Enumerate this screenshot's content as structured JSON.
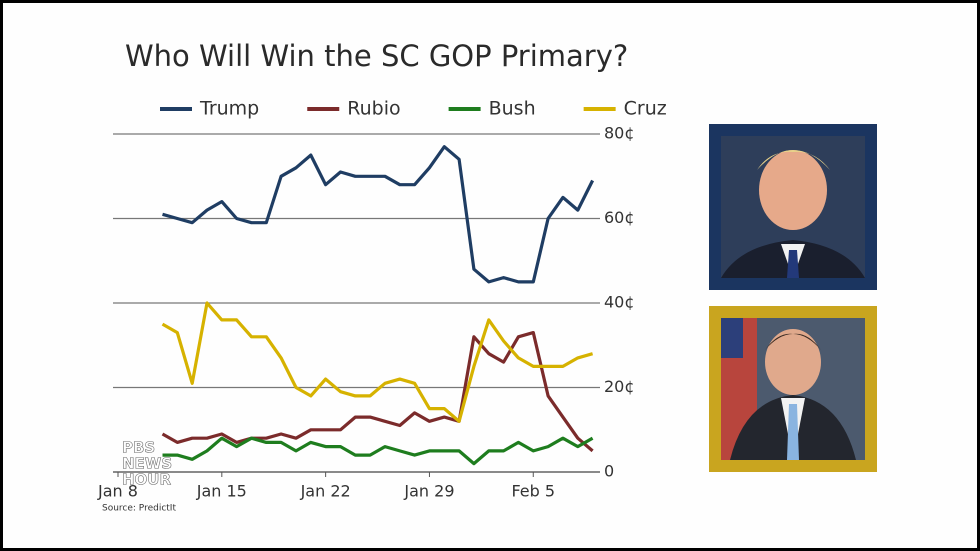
{
  "chart_data": {
    "type": "line",
    "title": "Who Will Win the SC GOP Primary?",
    "source": "Source: PredictIt",
    "logo": [
      "PBS",
      "NEWS",
      "HOUR"
    ],
    "x": [
      11,
      12,
      13,
      14,
      15,
      16,
      17,
      18,
      19,
      20,
      21,
      22,
      23,
      24,
      25,
      26,
      27,
      28,
      29,
      30,
      31,
      32,
      33,
      34,
      35,
      36,
      37,
      38,
      39,
      40
    ],
    "xlim": [
      8,
      40.5
    ],
    "xticks": [
      {
        "value": 8,
        "label": "Jan 8"
      },
      {
        "value": 15,
        "label": "Jan 15"
      },
      {
        "value": 22,
        "label": "Jan 22"
      },
      {
        "value": 29,
        "label": "Jan 29"
      },
      {
        "value": 36,
        "label": "Feb 5"
      }
    ],
    "ylim": [
      0,
      80
    ],
    "yticks": [
      0,
      {
        "value": 20,
        "label": "20¢"
      },
      {
        "value": 40,
        "label": "40¢"
      },
      {
        "value": 60,
        "label": "60¢"
      },
      {
        "value": 80,
        "label": "80¢"
      }
    ],
    "grid": true,
    "legend": "top",
    "series": [
      {
        "name": "Trump",
        "color": "#1f3d63",
        "values": [
          61,
          60,
          59,
          62,
          64,
          60,
          59,
          59,
          70,
          72,
          75,
          68,
          71,
          70,
          70,
          70,
          68,
          68,
          72,
          77,
          74,
          48,
          45,
          46,
          45,
          45,
          60,
          65,
          62,
          69
        ]
      },
      {
        "name": "Rubio",
        "color": "#7b2b2b",
        "values": [
          9,
          7,
          8,
          8,
          9,
          7,
          8,
          8,
          9,
          8,
          10,
          10,
          10,
          13,
          13,
          12,
          11,
          14,
          12,
          13,
          12,
          32,
          28,
          26,
          32,
          33,
          18,
          13,
          8,
          5
        ]
      },
      {
        "name": "Bush",
        "color": "#1e7d1e",
        "values": [
          4,
          4,
          3,
          5,
          8,
          6,
          8,
          7,
          7,
          5,
          7,
          6,
          6,
          4,
          4,
          6,
          5,
          4,
          5,
          5,
          5,
          2,
          5,
          5,
          7,
          5,
          6,
          8,
          6,
          8
        ]
      },
      {
        "name": "Cruz",
        "color": "#d6b200",
        "values": [
          35,
          33,
          21,
          40,
          36,
          36,
          32,
          32,
          27,
          20,
          18,
          22,
          19,
          18,
          18,
          21,
          22,
          21,
          15,
          15,
          12,
          25,
          36,
          31,
          27,
          25,
          25,
          25,
          27,
          28
        ]
      }
    ]
  }
}
